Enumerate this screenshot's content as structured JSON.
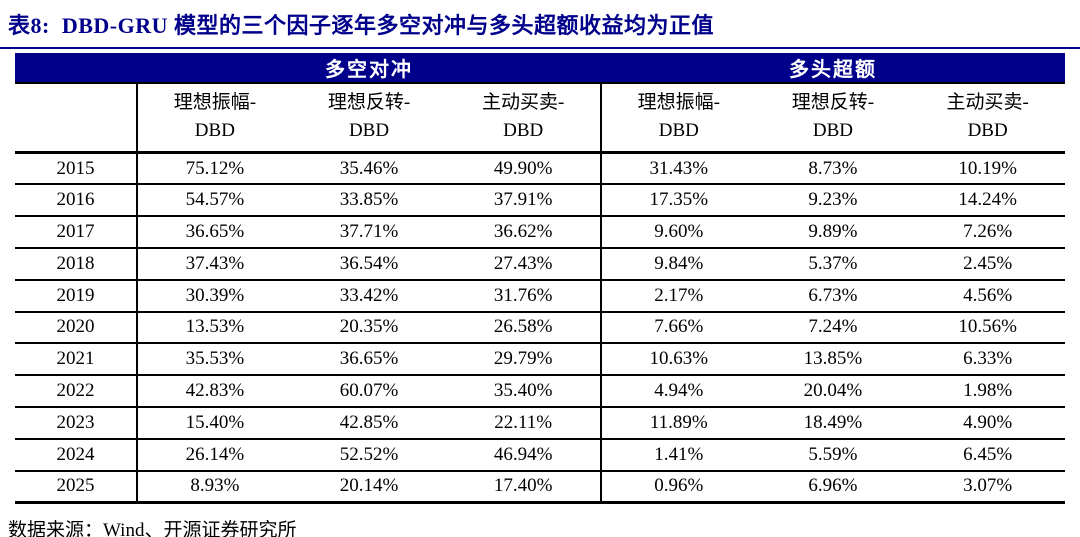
{
  "accent_color": "#00008B",
  "title": "表8:  DBD-GRU 模型的三个因子逐年多空对冲与多头超额收益均为正值",
  "table": {
    "group_headers": [
      {
        "label": "多空对冲"
      },
      {
        "label": "多头超额"
      }
    ],
    "column_headers": [
      {
        "line1": "理想振幅-",
        "line2": "DBD"
      },
      {
        "line1": "理想反转-",
        "line2": "DBD"
      },
      {
        "line1": "主动买卖-",
        "line2": "DBD"
      },
      {
        "line1": "理想振幅-",
        "line2": "DBD"
      },
      {
        "line1": "理想反转-",
        "line2": "DBD"
      },
      {
        "line1": "主动买卖-",
        "line2": "DBD"
      }
    ],
    "rows": [
      {
        "year": "2015",
        "values": [
          "75.12%",
          "35.46%",
          "49.90%",
          "31.43%",
          "8.73%",
          "10.19%"
        ]
      },
      {
        "year": "2016",
        "values": [
          "54.57%",
          "33.85%",
          "37.91%",
          "17.35%",
          "9.23%",
          "14.24%"
        ]
      },
      {
        "year": "2017",
        "values": [
          "36.65%",
          "37.71%",
          "36.62%",
          "9.60%",
          "9.89%",
          "7.26%"
        ]
      },
      {
        "year": "2018",
        "values": [
          "37.43%",
          "36.54%",
          "27.43%",
          "9.84%",
          "5.37%",
          "2.45%"
        ]
      },
      {
        "year": "2019",
        "values": [
          "30.39%",
          "33.42%",
          "31.76%",
          "2.17%",
          "6.73%",
          "4.56%"
        ]
      },
      {
        "year": "2020",
        "values": [
          "13.53%",
          "20.35%",
          "26.58%",
          "7.66%",
          "7.24%",
          "10.56%"
        ]
      },
      {
        "year": "2021",
        "values": [
          "35.53%",
          "36.65%",
          "29.79%",
          "10.63%",
          "13.85%",
          "6.33%"
        ]
      },
      {
        "year": "2022",
        "values": [
          "42.83%",
          "60.07%",
          "35.40%",
          "4.94%",
          "20.04%",
          "1.98%"
        ]
      },
      {
        "year": "2023",
        "values": [
          "15.40%",
          "42.85%",
          "22.11%",
          "11.89%",
          "18.49%",
          "4.90%"
        ]
      },
      {
        "year": "2024",
        "values": [
          "26.14%",
          "52.52%",
          "46.94%",
          "1.41%",
          "5.59%",
          "6.45%"
        ]
      },
      {
        "year": "2025",
        "values": [
          "8.93%",
          "20.14%",
          "17.40%",
          "0.96%",
          "6.96%",
          "3.07%"
        ]
      }
    ]
  },
  "footer": "数据来源：Wind、开源证券研究所"
}
